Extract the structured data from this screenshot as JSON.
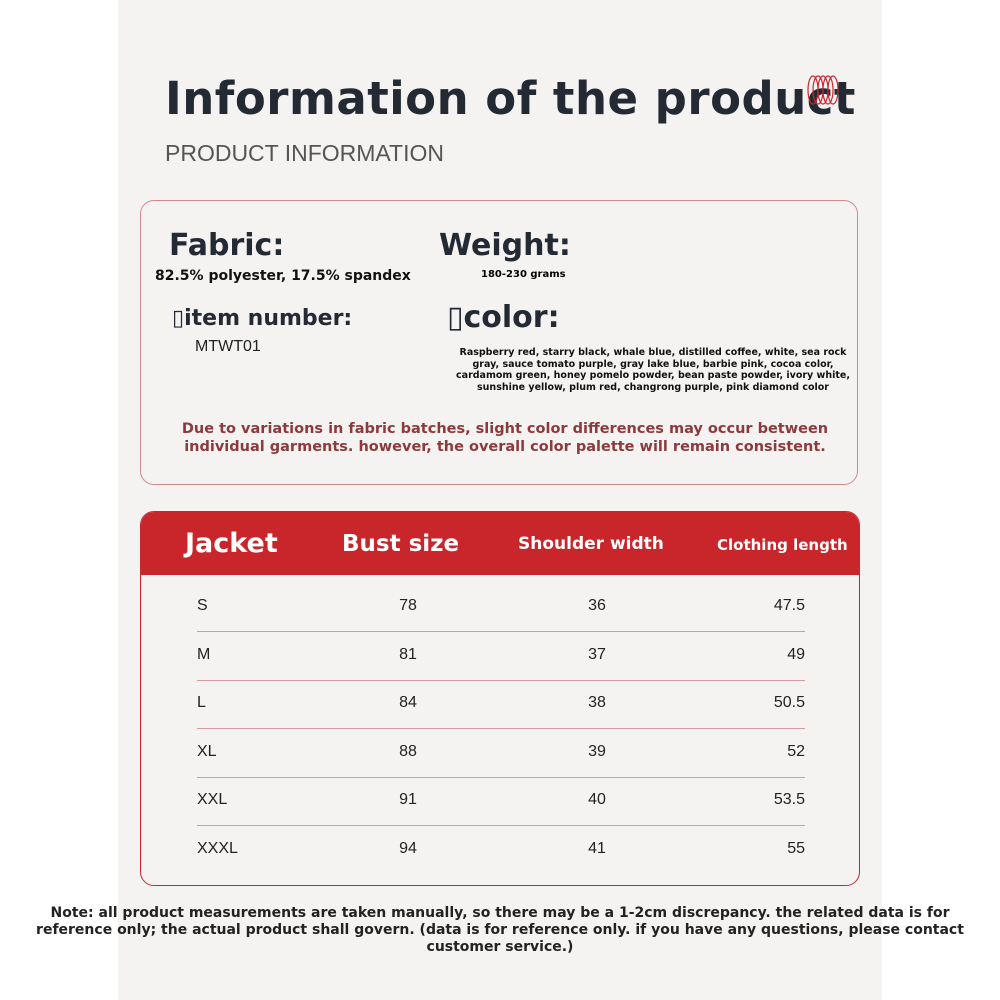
{
  "title": "Information of the product",
  "subtitle": "PRODUCT INFORMATION",
  "info": {
    "fabric_label": "Fabric:",
    "fabric_value": "82.5% polyester, 17.5% spandex",
    "weight_label": "Weight:",
    "weight_value": "180-230 grams",
    "item_label": "▯item number:",
    "item_value": "MTWT01",
    "color_label": "▯color:",
    "color_value": "Raspberry red, starry black, whale blue, distilled coffee, white, sea rock gray, sauce tomato purple, gray lake blue, barbie pink, cocoa color, cardamom green, honey pomelo powder, bean paste powder, ivory white, sunshine yellow, plum red, changrong purple, pink diamond color",
    "notice": "Due to variations in fabric batches, slight color differences may occur between individual garments. however, the overall color palette will remain consistent."
  },
  "table": {
    "headers": [
      "Jacket",
      "Bust size",
      "Shoulder width",
      "Clothing length"
    ],
    "rows": [
      [
        "S",
        "78",
        "36",
        "47.5"
      ],
      [
        "M",
        "81",
        "37",
        "49"
      ],
      [
        "L",
        "84",
        "38",
        "50.5"
      ],
      [
        "XL",
        "88",
        "39",
        "52"
      ],
      [
        "XXL",
        "91",
        "40",
        "53.5"
      ],
      [
        "XXXL",
        "94",
        "41",
        "55"
      ]
    ]
  },
  "footnote": "Note: all product measurements are taken manually, so there may be a 1-2cm discrepancy. the related data is for reference only; the actual product shall govern. (data is for reference only. if you have any questions, please contact customer service.)",
  "colors": {
    "accent": "#c9262c",
    "panel": "#f4f3f2",
    "text": "#232a33"
  }
}
